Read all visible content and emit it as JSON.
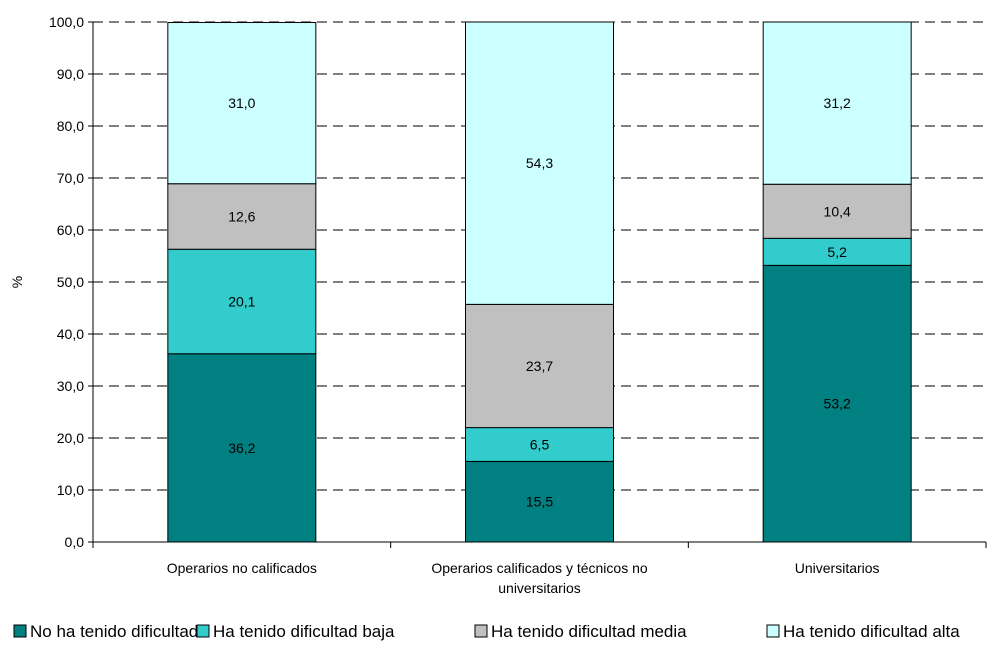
{
  "chart_data": {
    "type": "bar",
    "stacked": true,
    "categories": [
      [
        "Operarios no calificados"
      ],
      [
        "Operarios calificados y técnicos no",
        "universitarios"
      ],
      [
        "Universitarios"
      ]
    ],
    "series": [
      {
        "name": "No ha tenido dificultad",
        "color": "#008080",
        "values": [
          "36,2",
          "15,5",
          "53,2"
        ],
        "num": [
          36.2,
          15.5,
          53.2
        ]
      },
      {
        "name": "Ha tenido dificultad baja",
        "color": "#33CCCC",
        "values": [
          "20,1",
          "6,5",
          "5,2"
        ],
        "num": [
          20.1,
          6.5,
          5.2
        ]
      },
      {
        "name": "Ha tenido dificultad media",
        "color": "#C0C0C0",
        "values": [
          "12,6",
          "23,7",
          "10,4"
        ],
        "num": [
          12.6,
          23.7,
          10.4
        ]
      },
      {
        "name": "Ha tenido dificultad alta",
        "color": "#CCFFFF",
        "values": [
          "31,0",
          "54,3",
          "31,2"
        ],
        "num": [
          31.0,
          54.3,
          31.2
        ]
      }
    ],
    "ylabel": "%",
    "ylim": [
      0,
      100
    ],
    "yticks": [
      "0,0",
      "10,0",
      "20,0",
      "30,0",
      "40,0",
      "50,0",
      "60,0",
      "70,0",
      "80,0",
      "90,0",
      "100,0"
    ],
    "grid": "dashed horizontal",
    "legend": "bottom"
  }
}
